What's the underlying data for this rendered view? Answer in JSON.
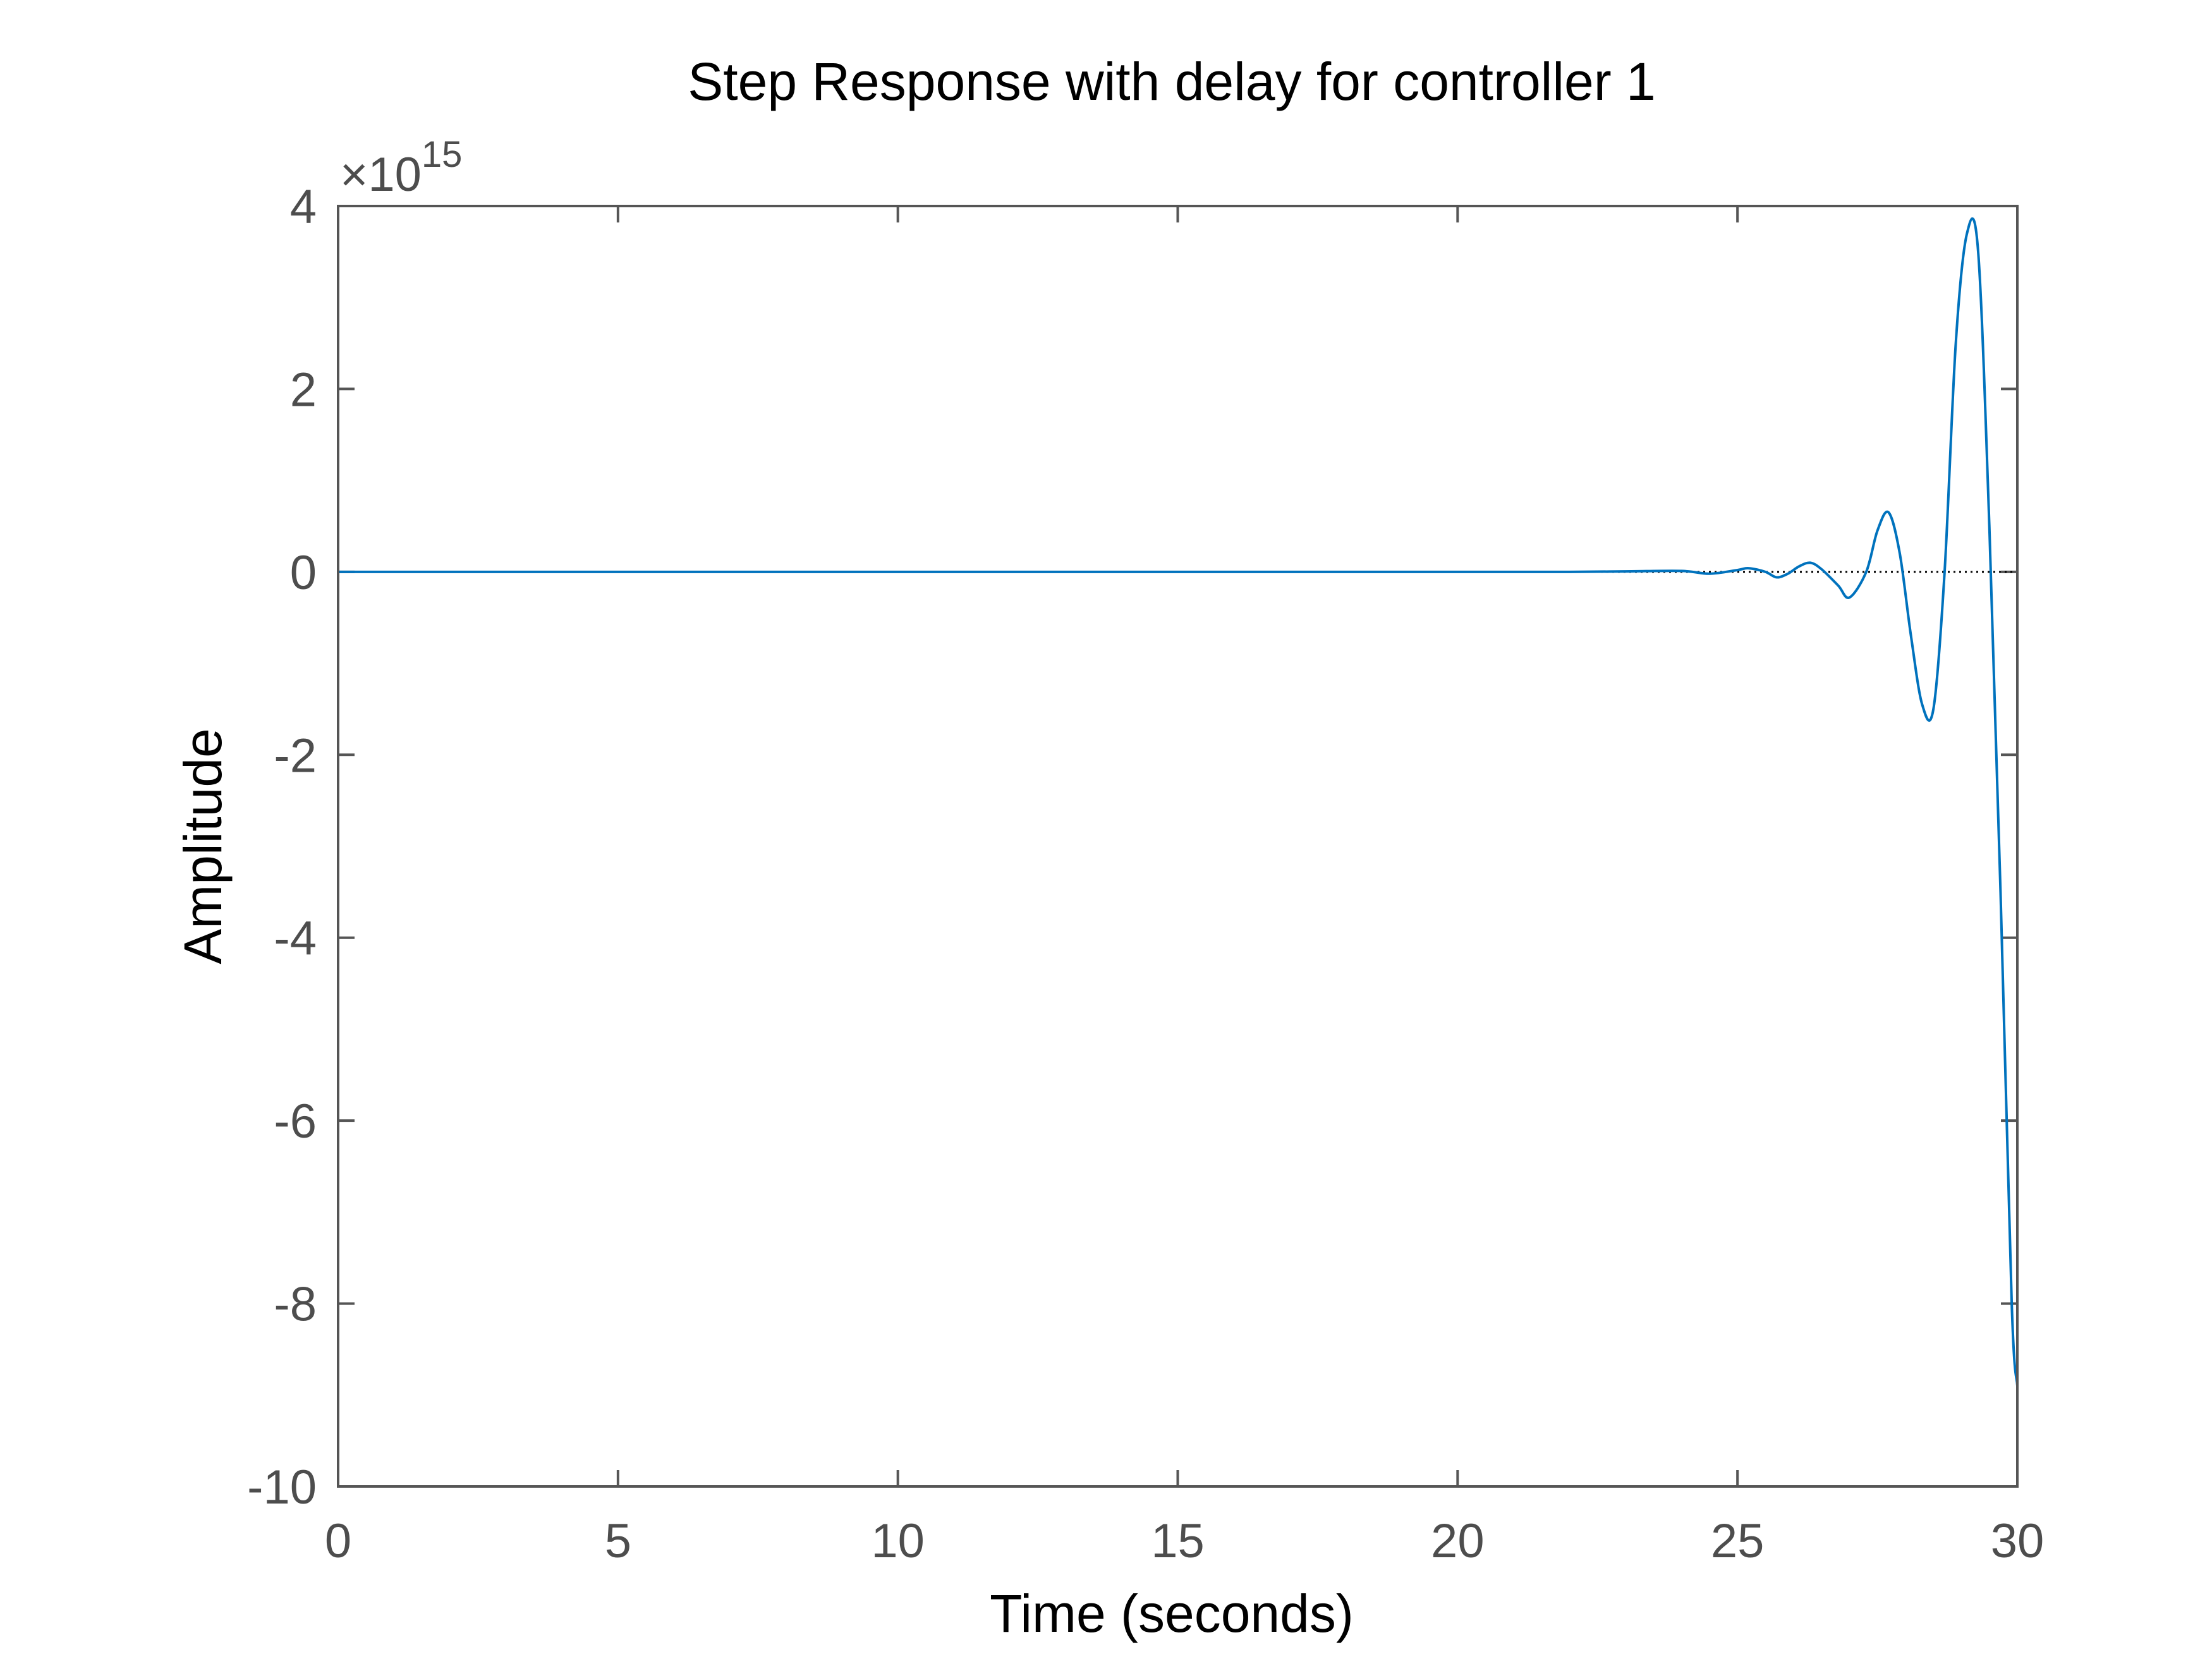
{
  "chart_data": {
    "type": "line",
    "title": "Step Response with delay for controller 1",
    "xlabel": "Time (seconds)",
    "ylabel": "Amplitude",
    "exponent_label": {
      "times": "×10",
      "power": "15"
    },
    "xlim": [
      0,
      30
    ],
    "ylim": [
      -10,
      4
    ],
    "y_scale_factor": 1000000000000000.0,
    "x_ticks": [
      0,
      5,
      10,
      15,
      20,
      25,
      30
    ],
    "x_tick_labels": [
      "0",
      "5",
      "10",
      "15",
      "20",
      "25",
      "30"
    ],
    "y_ticks": [
      -10,
      -8,
      -6,
      -4,
      -2,
      0,
      2,
      4
    ],
    "y_tick_labels": [
      "-10",
      "-8",
      "-6",
      "-4",
      "-2",
      "0",
      "2",
      "4"
    ],
    "grid": false,
    "reference_line": {
      "y": 0,
      "style": "dotted",
      "color": "#000000"
    },
    "series": [
      {
        "color": "#0072bd",
        "x": [
          0,
          5,
          10,
          15,
          20,
          22,
          23,
          24,
          24.5,
          25,
          25.2,
          25.5,
          25.7,
          25.9,
          26.1,
          26.3,
          26.5,
          26.8,
          27.0,
          27.3,
          27.5,
          27.7,
          27.9,
          28.1,
          28.3,
          28.5,
          28.7,
          28.9,
          29.1,
          29.3,
          29.5,
          29.7,
          29.9,
          30.0
        ],
        "y": [
          0,
          0,
          0,
          0,
          0,
          0,
          0.005,
          0.01,
          -0.02,
          0.02,
          0.04,
          0.0,
          -0.06,
          -0.02,
          0.06,
          0.1,
          0.03,
          -0.15,
          -0.28,
          0.0,
          0.45,
          0.65,
          0.2,
          -0.7,
          -1.45,
          -1.5,
          0.0,
          2.5,
          3.7,
          3.5,
          0.5,
          -3.5,
          -8.0,
          -8.9
        ]
      }
    ]
  }
}
